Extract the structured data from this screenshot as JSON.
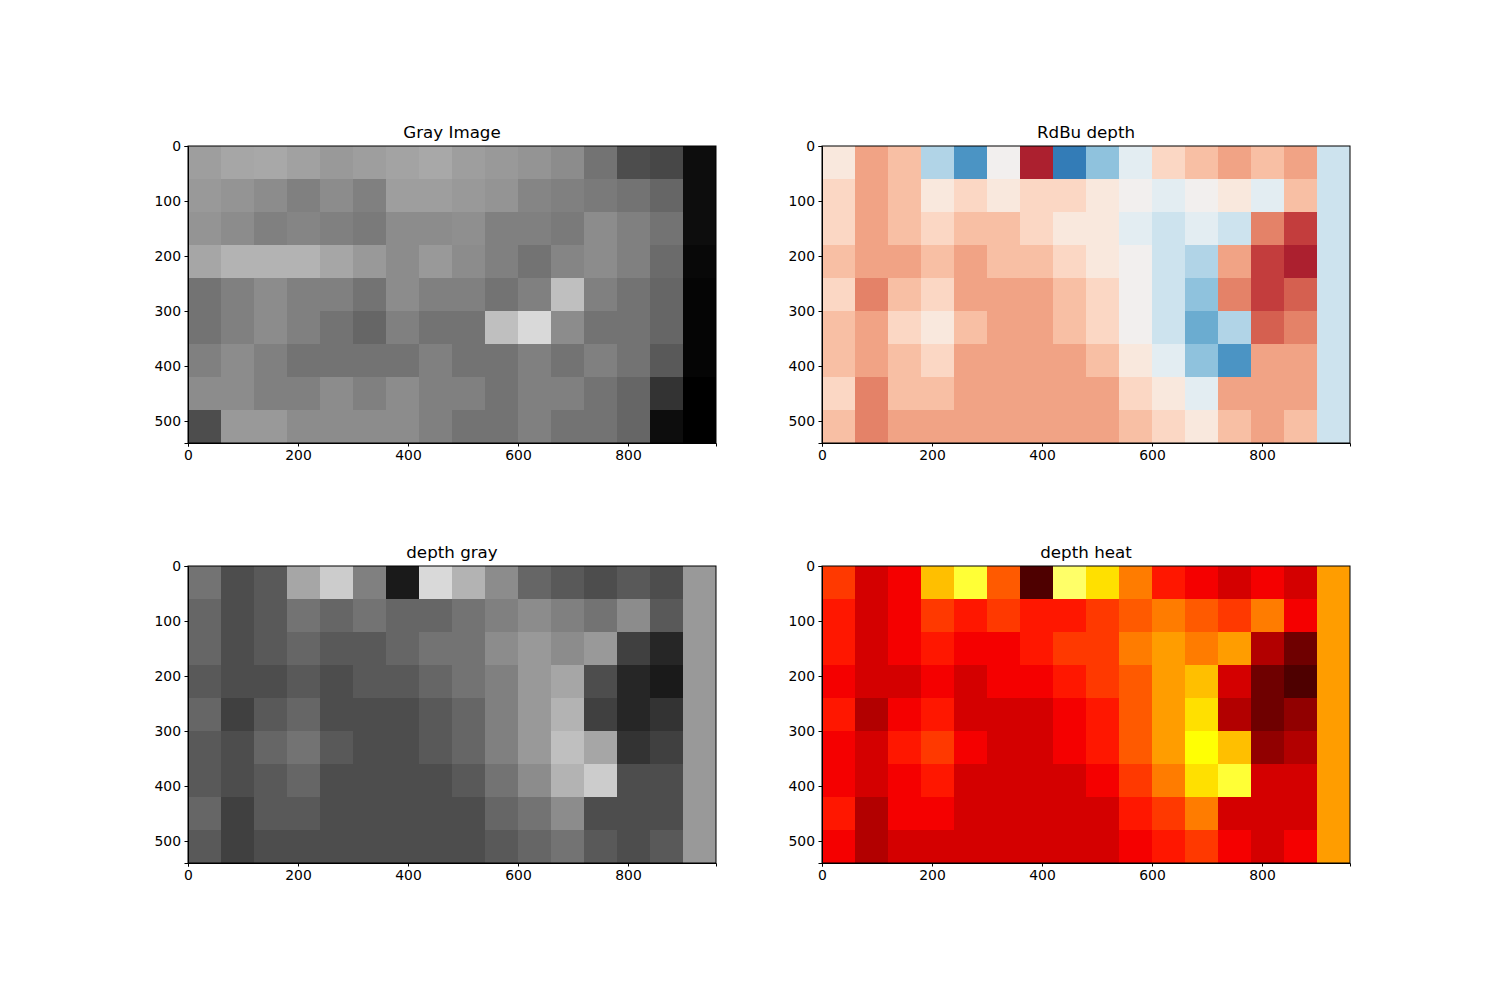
{
  "chart_data": [
    {
      "type": "heatmap",
      "title": "Gray Image",
      "color": "gray",
      "xlim": [
        0,
        960
      ],
      "ylim": [
        540,
        0
      ],
      "xticks": [
        0,
        200,
        400,
        600,
        800
      ],
      "yticks": [
        0,
        100,
        200,
        300,
        400,
        500
      ],
      "clim": [
        0,
        1
      ],
      "cells": [
        [
          0.62,
          0.65,
          0.66,
          0.63,
          0.6,
          0.62,
          0.64,
          0.66,
          0.62,
          0.6,
          0.58,
          0.55,
          0.45,
          0.3,
          0.28,
          0.05
        ],
        [
          0.6,
          0.58,
          0.55,
          0.5,
          0.55,
          0.5,
          0.62,
          0.62,
          0.6,
          0.58,
          0.52,
          0.5,
          0.48,
          0.45,
          0.4,
          0.05
        ],
        [
          0.58,
          0.55,
          0.5,
          0.52,
          0.5,
          0.48,
          0.55,
          0.55,
          0.56,
          0.5,
          0.5,
          0.48,
          0.55,
          0.5,
          0.45,
          0.05
        ],
        [
          0.65,
          0.7,
          0.7,
          0.7,
          0.65,
          0.6,
          0.55,
          0.6,
          0.55,
          0.5,
          0.45,
          0.52,
          0.55,
          0.5,
          0.42,
          0.03
        ],
        [
          0.45,
          0.5,
          0.55,
          0.5,
          0.5,
          0.45,
          0.55,
          0.5,
          0.5,
          0.45,
          0.5,
          0.75,
          0.5,
          0.45,
          0.4,
          0.02
        ],
        [
          0.45,
          0.5,
          0.55,
          0.5,
          0.45,
          0.4,
          0.5,
          0.45,
          0.45,
          0.75,
          0.85,
          0.55,
          0.45,
          0.45,
          0.4,
          0.02
        ],
        [
          0.5,
          0.55,
          0.5,
          0.45,
          0.45,
          0.45,
          0.45,
          0.5,
          0.45,
          0.45,
          0.5,
          0.45,
          0.5,
          0.45,
          0.35,
          0.02
        ],
        [
          0.55,
          0.55,
          0.5,
          0.5,
          0.55,
          0.5,
          0.55,
          0.5,
          0.5,
          0.45,
          0.5,
          0.5,
          0.45,
          0.4,
          0.2,
          0.0
        ],
        [
          0.3,
          0.6,
          0.6,
          0.55,
          0.55,
          0.55,
          0.55,
          0.5,
          0.45,
          0.45,
          0.5,
          0.45,
          0.45,
          0.4,
          0.05,
          0.0
        ]
      ]
    },
    {
      "type": "heatmap",
      "title": "RdBu depth",
      "color": "RdBu",
      "xlim": [
        0,
        960
      ],
      "ylim": [
        540,
        0
      ],
      "xticks": [
        0,
        200,
        400,
        600,
        800
      ],
      "yticks": [
        0,
        100,
        200,
        300,
        400,
        500
      ],
      "clim": [
        0,
        1
      ],
      "cells": [
        [
          0.45,
          0.3,
          0.35,
          0.65,
          0.8,
          0.5,
          0.1,
          0.85,
          0.7,
          0.55,
          0.4,
          0.35,
          0.3,
          0.35,
          0.3,
          0.6
        ],
        [
          0.4,
          0.3,
          0.35,
          0.45,
          0.4,
          0.45,
          0.4,
          0.4,
          0.45,
          0.5,
          0.55,
          0.5,
          0.45,
          0.55,
          0.35,
          0.6
        ],
        [
          0.4,
          0.3,
          0.35,
          0.4,
          0.35,
          0.35,
          0.4,
          0.45,
          0.45,
          0.55,
          0.6,
          0.55,
          0.6,
          0.25,
          0.15,
          0.6
        ],
        [
          0.35,
          0.3,
          0.3,
          0.35,
          0.3,
          0.35,
          0.35,
          0.4,
          0.45,
          0.5,
          0.6,
          0.65,
          0.3,
          0.15,
          0.1,
          0.6
        ],
        [
          0.4,
          0.25,
          0.35,
          0.4,
          0.3,
          0.3,
          0.3,
          0.35,
          0.4,
          0.5,
          0.6,
          0.7,
          0.25,
          0.15,
          0.2,
          0.6
        ],
        [
          0.35,
          0.3,
          0.4,
          0.45,
          0.35,
          0.3,
          0.3,
          0.35,
          0.4,
          0.5,
          0.6,
          0.75,
          0.65,
          0.2,
          0.25,
          0.6
        ],
        [
          0.35,
          0.3,
          0.35,
          0.4,
          0.3,
          0.3,
          0.3,
          0.3,
          0.35,
          0.45,
          0.55,
          0.7,
          0.8,
          0.3,
          0.3,
          0.6
        ],
        [
          0.4,
          0.25,
          0.35,
          0.35,
          0.3,
          0.3,
          0.3,
          0.3,
          0.3,
          0.4,
          0.45,
          0.55,
          0.3,
          0.3,
          0.3,
          0.6
        ],
        [
          0.35,
          0.25,
          0.3,
          0.3,
          0.3,
          0.3,
          0.3,
          0.3,
          0.3,
          0.35,
          0.4,
          0.45,
          0.35,
          0.3,
          0.35,
          0.6
        ]
      ]
    },
    {
      "type": "heatmap",
      "title": "depth gray",
      "color": "gray",
      "xlim": [
        0,
        960
      ],
      "ylim": [
        540,
        0
      ],
      "xticks": [
        0,
        200,
        400,
        600,
        800
      ],
      "yticks": [
        0,
        100,
        200,
        300,
        400,
        500
      ],
      "clim": [
        0,
        1
      ],
      "cells": [
        [
          0.45,
          0.3,
          0.35,
          0.65,
          0.8,
          0.5,
          0.1,
          0.85,
          0.7,
          0.55,
          0.4,
          0.35,
          0.3,
          0.35,
          0.3,
          0.6
        ],
        [
          0.4,
          0.3,
          0.35,
          0.45,
          0.4,
          0.45,
          0.4,
          0.4,
          0.45,
          0.5,
          0.55,
          0.5,
          0.45,
          0.55,
          0.35,
          0.6
        ],
        [
          0.4,
          0.3,
          0.35,
          0.4,
          0.35,
          0.35,
          0.4,
          0.45,
          0.45,
          0.55,
          0.6,
          0.55,
          0.6,
          0.25,
          0.15,
          0.6
        ],
        [
          0.35,
          0.3,
          0.3,
          0.35,
          0.3,
          0.35,
          0.35,
          0.4,
          0.45,
          0.5,
          0.6,
          0.65,
          0.3,
          0.15,
          0.1,
          0.6
        ],
        [
          0.4,
          0.25,
          0.35,
          0.4,
          0.3,
          0.3,
          0.3,
          0.35,
          0.4,
          0.5,
          0.6,
          0.7,
          0.25,
          0.15,
          0.2,
          0.6
        ],
        [
          0.35,
          0.3,
          0.4,
          0.45,
          0.35,
          0.3,
          0.3,
          0.35,
          0.4,
          0.5,
          0.6,
          0.75,
          0.65,
          0.2,
          0.25,
          0.6
        ],
        [
          0.35,
          0.3,
          0.35,
          0.4,
          0.3,
          0.3,
          0.3,
          0.3,
          0.35,
          0.45,
          0.55,
          0.7,
          0.8,
          0.3,
          0.3,
          0.6
        ],
        [
          0.4,
          0.25,
          0.35,
          0.35,
          0.3,
          0.3,
          0.3,
          0.3,
          0.3,
          0.4,
          0.45,
          0.55,
          0.3,
          0.3,
          0.3,
          0.6
        ],
        [
          0.35,
          0.25,
          0.3,
          0.3,
          0.3,
          0.3,
          0.3,
          0.3,
          0.3,
          0.35,
          0.4,
          0.45,
          0.35,
          0.3,
          0.35,
          0.6
        ]
      ]
    },
    {
      "type": "heatmap",
      "title": "depth heat",
      "color": "hot",
      "xlim": [
        0,
        960
      ],
      "ylim": [
        540,
        0
      ],
      "xticks": [
        0,
        200,
        400,
        600,
        800
      ],
      "yticks": [
        0,
        100,
        200,
        300,
        400,
        500
      ],
      "clim": [
        0,
        1
      ],
      "cells": [
        [
          0.45,
          0.3,
          0.35,
          0.65,
          0.8,
          0.5,
          0.1,
          0.85,
          0.7,
          0.55,
          0.4,
          0.35,
          0.3,
          0.35,
          0.3,
          0.6
        ],
        [
          0.4,
          0.3,
          0.35,
          0.45,
          0.4,
          0.45,
          0.4,
          0.4,
          0.45,
          0.5,
          0.55,
          0.5,
          0.45,
          0.55,
          0.35,
          0.6
        ],
        [
          0.4,
          0.3,
          0.35,
          0.4,
          0.35,
          0.35,
          0.4,
          0.45,
          0.45,
          0.55,
          0.6,
          0.55,
          0.6,
          0.25,
          0.15,
          0.6
        ],
        [
          0.35,
          0.3,
          0.3,
          0.35,
          0.3,
          0.35,
          0.35,
          0.4,
          0.45,
          0.5,
          0.6,
          0.65,
          0.3,
          0.15,
          0.1,
          0.6
        ],
        [
          0.4,
          0.25,
          0.35,
          0.4,
          0.3,
          0.3,
          0.3,
          0.35,
          0.4,
          0.5,
          0.6,
          0.7,
          0.25,
          0.15,
          0.2,
          0.6
        ],
        [
          0.35,
          0.3,
          0.4,
          0.45,
          0.35,
          0.3,
          0.3,
          0.35,
          0.4,
          0.5,
          0.6,
          0.75,
          0.65,
          0.2,
          0.25,
          0.6
        ],
        [
          0.35,
          0.3,
          0.35,
          0.4,
          0.3,
          0.3,
          0.3,
          0.3,
          0.35,
          0.45,
          0.55,
          0.7,
          0.8,
          0.3,
          0.3,
          0.6
        ],
        [
          0.4,
          0.25,
          0.35,
          0.35,
          0.3,
          0.3,
          0.3,
          0.3,
          0.3,
          0.4,
          0.45,
          0.55,
          0.3,
          0.3,
          0.3,
          0.6
        ],
        [
          0.35,
          0.25,
          0.3,
          0.3,
          0.3,
          0.3,
          0.3,
          0.3,
          0.3,
          0.35,
          0.4,
          0.45,
          0.35,
          0.3,
          0.35,
          0.6
        ]
      ]
    }
  ]
}
